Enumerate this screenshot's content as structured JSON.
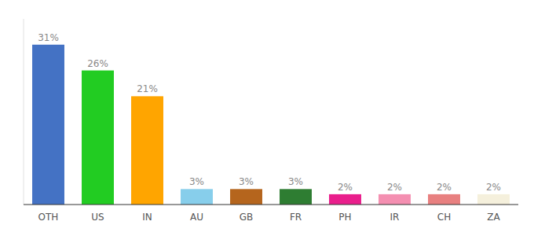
{
  "chart_data": {
    "type": "bar",
    "categories": [
      "OTH",
      "US",
      "IN",
      "AU",
      "GB",
      "FR",
      "PH",
      "IR",
      "CH",
      "ZA"
    ],
    "values": [
      31,
      26,
      21,
      3,
      3,
      3,
      2,
      2,
      2,
      2
    ],
    "value_labels": [
      "31%",
      "26%",
      "21%",
      "3%",
      "3%",
      "3%",
      "2%",
      "2%",
      "2%",
      "2%"
    ],
    "colors": [
      "#4472c4",
      "#22cc22",
      "#ffa500",
      "#87ceeb",
      "#b5651d",
      "#2e7d32",
      "#e91e8c",
      "#f48fb1",
      "#e88080",
      "#f5f0dc"
    ],
    "ylim": [
      0,
      36
    ],
    "data_labels": true,
    "tick_labels": "x",
    "grid": false
  }
}
